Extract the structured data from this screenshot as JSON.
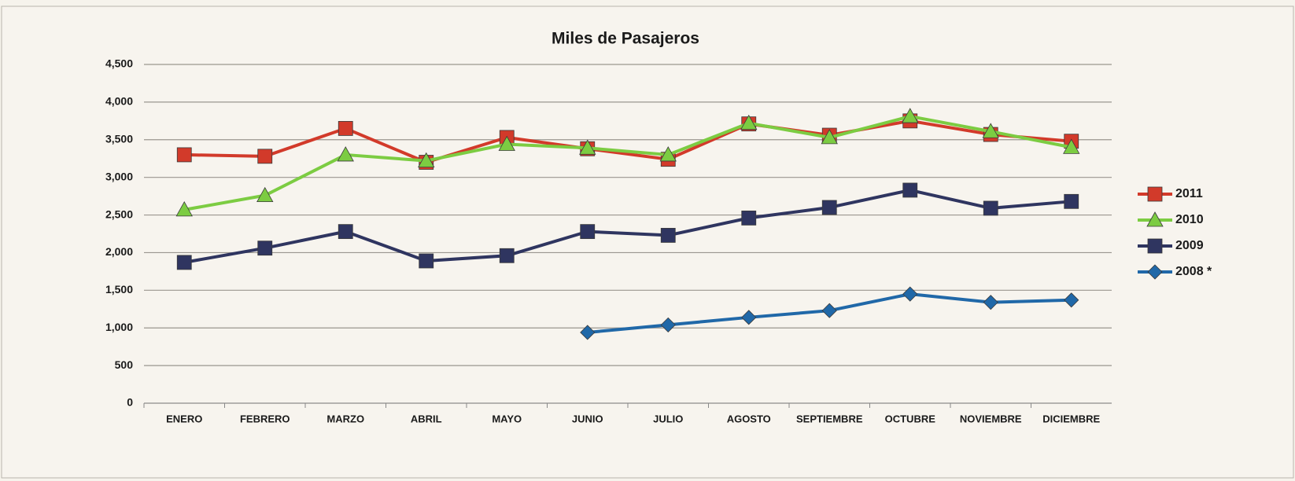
{
  "chart_data": {
    "type": "line",
    "title": "Miles de Pasajeros",
    "categories": [
      "ENERO",
      "FEBRERO",
      "MARZO",
      "ABRIL",
      "MAYO",
      "JUNIO",
      "JULIO",
      "AGOSTO",
      "SEPTIEMBRE",
      "OCTUBRE",
      "NOVIEMBRE",
      "DICIEMBRE"
    ],
    "series": [
      {
        "name": "2011",
        "color": "#d23a2a",
        "marker": "square",
        "values": [
          3300,
          3280,
          3650,
          3200,
          3530,
          3380,
          3240,
          3710,
          3560,
          3750,
          3570,
          3480
        ]
      },
      {
        "name": "2010",
        "color": "#7ccc42",
        "marker": "triangle",
        "values": [
          2570,
          2760,
          3300,
          3220,
          3440,
          3390,
          3300,
          3720,
          3530,
          3810,
          3610,
          3400
        ]
      },
      {
        "name": "2009",
        "color": "#2f3560",
        "marker": "square",
        "values": [
          1870,
          2060,
          2280,
          1890,
          1960,
          2280,
          2230,
          2460,
          2600,
          2830,
          2590,
          2680
        ]
      },
      {
        "name": "2008 *",
        "color": "#2068a8",
        "marker": "diamond",
        "values": [
          null,
          null,
          null,
          null,
          null,
          940,
          1040,
          1140,
          1230,
          1450,
          1340,
          1370
        ]
      }
    ],
    "ylim": [
      0,
      4500
    ],
    "yticks": [
      0,
      500,
      {
        "value": 1000,
        "label": "1,000"
      },
      {
        "value": 1500,
        "label": "1,500"
      },
      {
        "value": 2000,
        "label": "2,000"
      },
      {
        "value": 2500,
        "label": "2,500"
      },
      {
        "value": 3000,
        "label": "3,000"
      },
      {
        "value": 3500,
        "label": "3,500"
      },
      {
        "value": 4000,
        "label": "4,000"
      },
      {
        "value": 4500,
        "label": "4,500"
      }
    ],
    "grid": true,
    "legend": "right"
  }
}
